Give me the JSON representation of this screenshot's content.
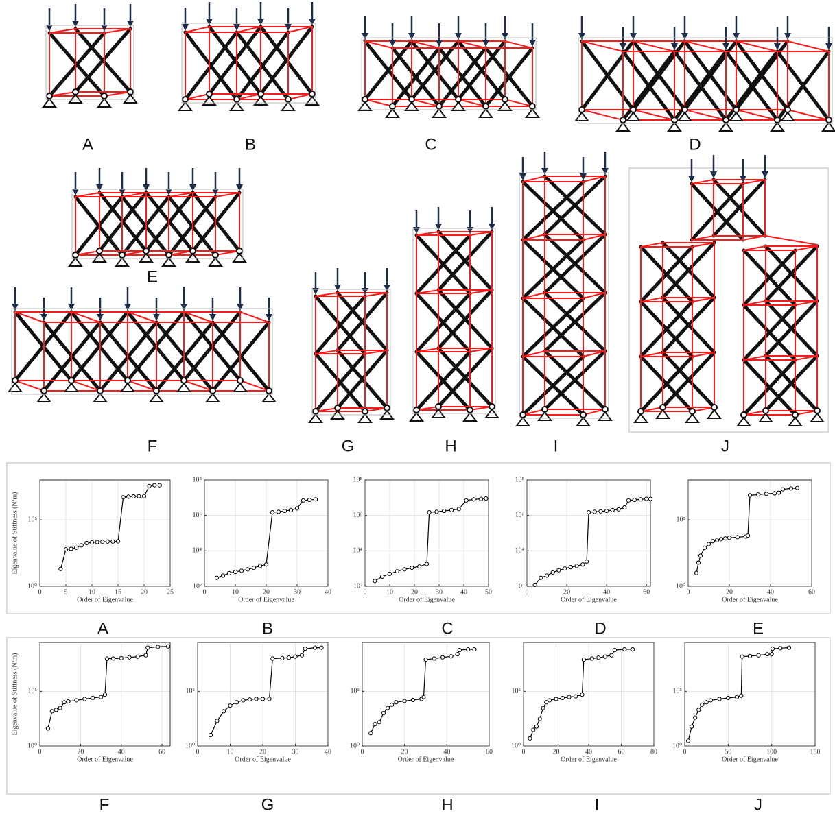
{
  "figure": {
    "diagram_labels": [
      "A",
      "B",
      "C",
      "D",
      "E",
      "F",
      "G",
      "H",
      "I",
      "J"
    ]
  },
  "chart_data": [
    {
      "type": "line",
      "panel_label": "A",
      "ylabel": "Eigenvalue of Stiffness (N/m)",
      "xlabel": "Order of Eigenvalue",
      "color": "#000000",
      "yscale": "log",
      "grid": true,
      "xlim": [
        0,
        25
      ],
      "xticks": [
        0,
        5,
        10,
        15,
        20,
        25
      ],
      "ylim": [
        1,
        100000000
      ],
      "yticks": [
        {
          "value": 1,
          "label": "10⁰"
        },
        {
          "value": 100000,
          "label": "10⁵"
        }
      ],
      "x": [
        4,
        5,
        6,
        7,
        8,
        9,
        10,
        11,
        12,
        13,
        14,
        15,
        16,
        17,
        18,
        19,
        20,
        21,
        22,
        23
      ],
      "values": [
        20,
        600,
        650,
        800,
        1200,
        1800,
        2000,
        2100,
        2200,
        2300,
        2300,
        2400,
        5000000,
        5500000,
        5800000,
        6000000,
        6000000,
        35000000,
        40000000,
        40000000
      ]
    },
    {
      "type": "line",
      "panel_label": "B",
      "xlabel": "Order of Eigenvalue",
      "color": "#000000",
      "yscale": "log",
      "grid": true,
      "xlim": [
        0,
        40
      ],
      "xticks": [
        0,
        10,
        20,
        30,
        40
      ],
      "ylim": [
        100,
        100000000
      ],
      "yticks": [
        {
          "value": 100,
          "label": "10²"
        },
        {
          "value": 10000,
          "label": "10⁴"
        },
        {
          "value": 1000000,
          "label": "10⁶"
        },
        {
          "value": 100000000,
          "label": "10⁸"
        }
      ],
      "x": [
        4,
        6,
        8,
        10,
        12,
        14,
        16,
        18,
        20,
        22,
        24,
        26,
        28,
        30,
        32,
        34,
        36
      ],
      "values": [
        300,
        400,
        550,
        650,
        750,
        900,
        1100,
        1400,
        1700,
        1500000,
        1600000,
        1800000,
        2000000,
        2500000,
        7000000,
        7500000,
        8000000
      ]
    },
    {
      "type": "line",
      "panel_label": "C",
      "xlabel": "Order of Eigenvalue",
      "color": "#000000",
      "yscale": "log",
      "grid": true,
      "xlim": [
        0,
        50
      ],
      "xticks": [
        0,
        10,
        20,
        30,
        40,
        50
      ],
      "ylim": [
        100,
        100000000
      ],
      "yticks": [
        {
          "value": 100,
          "label": "10²"
        },
        {
          "value": 10000,
          "label": "10⁴"
        },
        {
          "value": 1000000,
          "label": "10⁶"
        },
        {
          "value": 100000000,
          "label": "10⁸"
        }
      ],
      "x": [
        4,
        7,
        10,
        13,
        16,
        19,
        22,
        25,
        26,
        29,
        32,
        35,
        38,
        41,
        44,
        47,
        49
      ],
      "values": [
        200,
        350,
        500,
        700,
        900,
        1100,
        1300,
        1800,
        1500000,
        1600000,
        1800000,
        2000000,
        2300000,
        7000000,
        8000000,
        8500000,
        9000000
      ]
    },
    {
      "type": "line",
      "panel_label": "D",
      "xlabel": "Order of Eigenvalue",
      "color": "#000000",
      "yscale": "log",
      "grid": true,
      "xlim": [
        0,
        62
      ],
      "xticks": [
        0,
        20,
        40,
        60
      ],
      "ylim": [
        100,
        100000000
      ],
      "yticks": [
        {
          "value": 100,
          "label": "10²"
        },
        {
          "value": 10000,
          "label": "10⁴"
        },
        {
          "value": 1000000,
          "label": "10⁶"
        },
        {
          "value": 100000000,
          "label": "10⁸"
        }
      ],
      "x": [
        4,
        7,
        10,
        13,
        16,
        19,
        22,
        25,
        28,
        30,
        31,
        34,
        37,
        40,
        43,
        46,
        49,
        51,
        54,
        57,
        60,
        62
      ],
      "values": [
        120,
        300,
        400,
        600,
        800,
        1000,
        1200,
        1400,
        1700,
        2500,
        1500000,
        1600000,
        1700000,
        1800000,
        2000000,
        2200000,
        2800000,
        7000000,
        7500000,
        8000000,
        8500000,
        8500000
      ]
    },
    {
      "type": "line",
      "panel_label": "E",
      "xlabel": "Order of Eigenvalue",
      "color": "#000000",
      "yscale": "log",
      "grid": true,
      "xlim": [
        0,
        60
      ],
      "xticks": [
        0,
        20,
        40,
        60
      ],
      "ylim": [
        1,
        100000000
      ],
      "yticks": [
        {
          "value": 1,
          "label": "10⁰"
        },
        {
          "value": 100000,
          "label": "10⁵"
        }
      ],
      "x": [
        4,
        5,
        6,
        8,
        10,
        12,
        14,
        16,
        18,
        20,
        24,
        28,
        29,
        30,
        34,
        38,
        42,
        44,
        46,
        50,
        53
      ],
      "values": [
        10,
        60,
        200,
        800,
        1500,
        2500,
        3000,
        3500,
        4000,
        4500,
        5000,
        5500,
        6500,
        7000000,
        8000000,
        9000000,
        10000000,
        11000000,
        20000000,
        23000000,
        25000000
      ]
    },
    {
      "type": "line",
      "panel_label": "F",
      "ylabel": "Eigenvalue of Stiffness (N/m)",
      "xlabel": "Order of Eigenvalue",
      "color": "#000000",
      "yscale": "log",
      "grid": true,
      "xlim": [
        0,
        64
      ],
      "xticks": [
        0,
        20,
        40,
        60
      ],
      "ylim": [
        1,
        3000000000
      ],
      "yticks": [
        {
          "value": 1,
          "label": "10⁰"
        },
        {
          "value": 100000,
          "label": "10⁵"
        }
      ],
      "x": [
        4,
        6,
        8,
        10,
        12,
        14,
        18,
        22,
        26,
        30,
        32,
        33,
        36,
        40,
        44,
        48,
        52,
        53,
        58,
        63
      ],
      "values": [
        40,
        1500,
        2000,
        3000,
        10000,
        12000,
        15000,
        20000,
        25000,
        30000,
        50000,
        100000000,
        100000000,
        110000000,
        130000000,
        150000000,
        200000000,
        1000000000,
        1200000000,
        1300000000
      ]
    },
    {
      "type": "line",
      "panel_label": "G",
      "xlabel": "Order of Eigenvalue",
      "color": "#000000",
      "yscale": "log",
      "grid": true,
      "xlim": [
        0,
        40
      ],
      "xticks": [
        0,
        10,
        20,
        30,
        40
      ],
      "ylim": [
        1,
        3000000000
      ],
      "yticks": [
        {
          "value": 1,
          "label": "10⁰"
        },
        {
          "value": 100000,
          "label": "10⁵"
        }
      ],
      "x": [
        4,
        6,
        8,
        10,
        12,
        14,
        16,
        18,
        20,
        22,
        23,
        26,
        28,
        30,
        32,
        33,
        36,
        38
      ],
      "values": [
        10,
        200,
        1500,
        5000,
        10000,
        15000,
        18000,
        20000,
        20000,
        20000,
        100000000,
        110000000,
        120000000,
        150000000,
        200000000,
        800000000,
        1000000000,
        1000000000
      ]
    },
    {
      "type": "line",
      "panel_label": "H",
      "xlabel": "Order of Eigenvalue",
      "color": "#000000",
      "yscale": "log",
      "grid": true,
      "xlim": [
        0,
        60
      ],
      "xticks": [
        0,
        20,
        40,
        60
      ],
      "ylim": [
        1,
        3000000000
      ],
      "yticks": [
        {
          "value": 1,
          "label": "10⁰"
        },
        {
          "value": 100000,
          "label": "10⁵"
        }
      ],
      "x": [
        4,
        6,
        8,
        10,
        12,
        14,
        16,
        20,
        24,
        28,
        29,
        30,
        34,
        38,
        42,
        45,
        46,
        50,
        53
      ],
      "values": [
        15,
        100,
        150,
        1000,
        3000,
        6000,
        10000,
        13000,
        16000,
        20000,
        30000,
        80000000,
        100000000,
        130000000,
        160000000,
        250000000,
        600000000,
        700000000,
        700000000
      ]
    },
    {
      "type": "line",
      "panel_label": "I",
      "xlabel": "Order of Eigenvalue",
      "color": "#000000",
      "yscale": "log",
      "grid": true,
      "xlim": [
        0,
        80
      ],
      "xticks": [
        0,
        20,
        40,
        60,
        80
      ],
      "ylim": [
        1,
        3000000000
      ],
      "yticks": [
        {
          "value": 1,
          "label": "10⁰"
        },
        {
          "value": 100000,
          "label": "10⁵"
        }
      ],
      "x": [
        4,
        6,
        8,
        10,
        12,
        14,
        16,
        20,
        24,
        28,
        32,
        36,
        37,
        42,
        46,
        50,
        54,
        56,
        62,
        67
      ],
      "values": [
        5,
        30,
        60,
        300,
        3000,
        10000,
        15000,
        20000,
        25000,
        30000,
        35000,
        50000,
        80000000,
        100000000,
        120000000,
        150000000,
        200000000,
        600000000,
        700000000,
        700000000
      ]
    },
    {
      "type": "line",
      "panel_label": "J",
      "xlabel": "Order of Eigenvalue",
      "color": "#000000",
      "yscale": "log",
      "grid": true,
      "xlim": [
        0,
        150
      ],
      "xticks": [
        0,
        50,
        100,
        150
      ],
      "ylim": [
        1,
        3000000000
      ],
      "yticks": [
        {
          "value": 1,
          "label": "10⁰"
        },
        {
          "value": 100000,
          "label": "10⁵"
        }
      ],
      "x": [
        4,
        8,
        12,
        16,
        20,
        25,
        30,
        40,
        50,
        60,
        65,
        66,
        75,
        85,
        95,
        100,
        101,
        110,
        120
      ],
      "values": [
        3,
        60,
        400,
        2000,
        6000,
        10000,
        15000,
        20000,
        25000,
        30000,
        40000,
        150000000,
        170000000,
        200000000,
        250000000,
        250000000,
        800000000,
        900000000,
        1000000000
      ]
    }
  ]
}
